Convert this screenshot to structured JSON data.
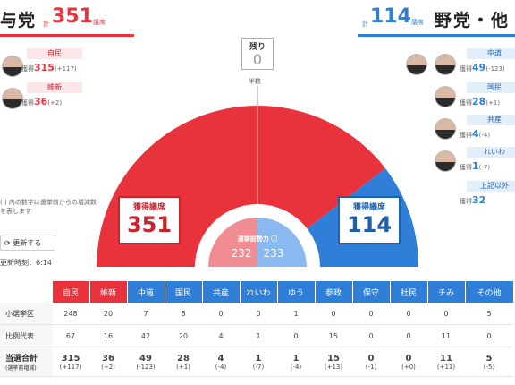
{
  "header_left": {
    "party": "与党",
    "kei": "計",
    "seats": "351",
    "unit": "議席"
  },
  "header_right": {
    "kei": "計",
    "seats": "114",
    "unit": "議席",
    "party": "野党・他"
  },
  "ruling_parties": [
    {
      "name": "自民",
      "seat_label": "獲得",
      "seats": "315",
      "change": "(+117)"
    },
    {
      "name": "維新",
      "seat_label": "獲得",
      "seats": "36",
      "change": "(+2)"
    }
  ],
  "opposition_parties": [
    {
      "name": "中道",
      "seat_label": "獲得",
      "seats": "49",
      "change": "(-123)"
    },
    {
      "name": "国民",
      "seat_label": "獲得",
      "seats": "28",
      "change": "(+1)"
    },
    {
      "name": "共産",
      "seat_label": "獲得",
      "seats": "4",
      "change": "(-4)"
    },
    {
      "name": "れいわ",
      "seat_label": "獲得",
      "seats": "1",
      "change": "(-7)"
    },
    {
      "name": "上記以外",
      "seat_label": "獲得",
      "seats": "32",
      "change": ""
    }
  ],
  "remaining": {
    "label": "残り",
    "value": "0"
  },
  "half_label": "半数",
  "note": "( ) 内の数字は選挙前からの増減数を表します",
  "update_button": {
    "icon": "refresh-icon",
    "label": "更新する"
  },
  "update_time": "更新時刻：6:14",
  "seat_box_left": {
    "label": "獲得議席",
    "value": "351"
  },
  "seat_box_right": {
    "label": "獲得議席",
    "value": "114"
  },
  "pre_election": {
    "label": "選挙前勢力",
    "left": "232",
    "right": "233"
  },
  "colors": {
    "ruling": "#e8333d",
    "opposition": "#2f7fd8",
    "ruling_light": "#f08d92",
    "opposition_light": "#89b9ef"
  },
  "table": {
    "columns": [
      "",
      "自民",
      "維新",
      "中道",
      "国民",
      "共産",
      "れいわ",
      "ゆう",
      "参政",
      "保守",
      "社民",
      "チみ",
      "その他"
    ],
    "column_side": [
      "",
      "ruling",
      "ruling",
      "opp",
      "opp",
      "opp",
      "opp",
      "opp",
      "opp",
      "opp",
      "opp",
      "opp",
      "opp"
    ],
    "rows": [
      {
        "label": "小選挙区",
        "cells": [
          "248",
          "20",
          "7",
          "8",
          "0",
          "0",
          "1",
          "0",
          "0",
          "0",
          "0",
          "5"
        ]
      },
      {
        "label": "比例代表",
        "cells": [
          "67",
          "16",
          "42",
          "20",
          "4",
          "1",
          "0",
          "15",
          "0",
          "0",
          "11",
          "0"
        ]
      }
    ],
    "total": {
      "label": "当選合計",
      "sub": "(選挙前増減)",
      "cells": [
        "315",
        "36",
        "49",
        "28",
        "4",
        "1",
        "1",
        "15",
        "0",
        "0",
        "11",
        "5"
      ],
      "changes": [
        "(+117)",
        "(+2)",
        "(-123)",
        "(+1)",
        "(-4)",
        "(-7)",
        "(-4)",
        "(+13)",
        "(-1)",
        "(+0)",
        "(+11)",
        "(-5)"
      ]
    }
  }
}
